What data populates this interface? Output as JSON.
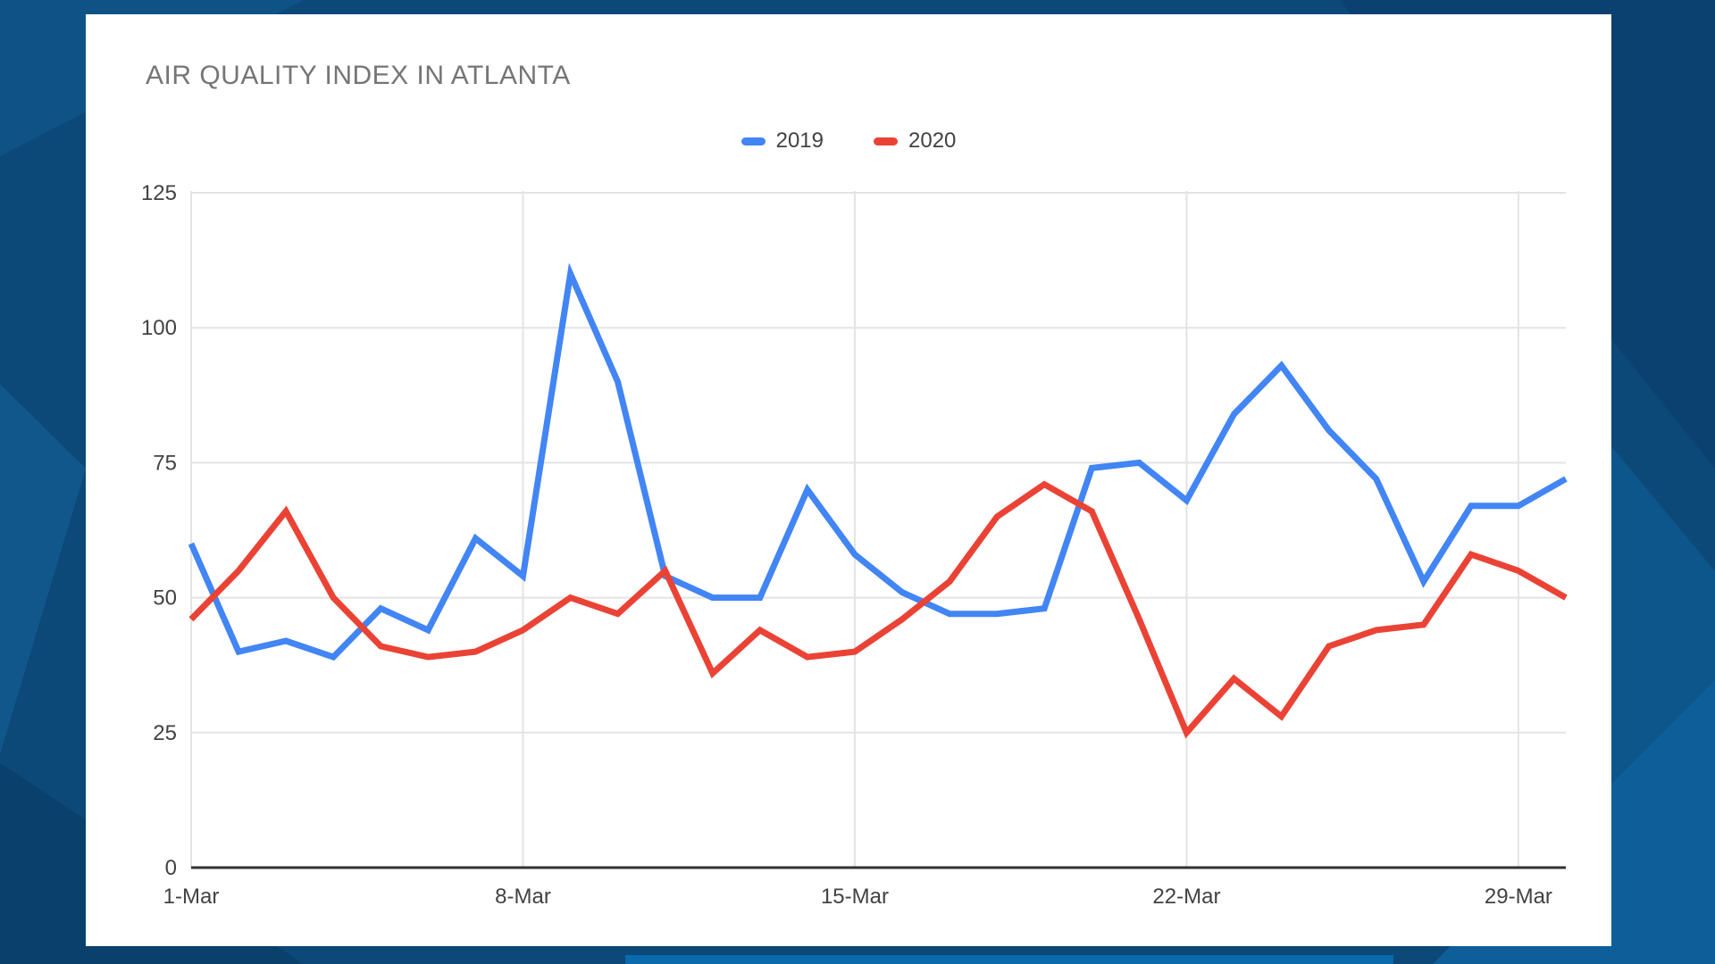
{
  "background": {
    "base_color": "#0C4878",
    "accent_colors": [
      "#0F5286",
      "#11578B",
      "#09406C",
      "#0A4170",
      "#0D568C",
      "#0E5E99",
      "#0A6AAB"
    ]
  },
  "chart": {
    "title": "AIR QUALITY INDEX IN ATLANTA",
    "title_color": "#757575",
    "legend": [
      {
        "label": "2019",
        "color": "#4285F4"
      },
      {
        "label": "2020",
        "color": "#EA4335"
      }
    ]
  },
  "chart_data": {
    "type": "line",
    "title": "AIR QUALITY INDEX IN ATLANTA",
    "categories": [
      "1-Mar",
      "2-Mar",
      "3-Mar",
      "4-Mar",
      "5-Mar",
      "6-Mar",
      "7-Mar",
      "8-Mar",
      "9-Mar",
      "10-Mar",
      "11-Mar",
      "12-Mar",
      "13-Mar",
      "14-Mar",
      "15-Mar",
      "16-Mar",
      "17-Mar",
      "18-Mar",
      "19-Mar",
      "20-Mar",
      "21-Mar",
      "22-Mar",
      "23-Mar",
      "24-Mar",
      "25-Mar",
      "26-Mar",
      "27-Mar",
      "28-Mar",
      "29-Mar",
      "30-Mar"
    ],
    "x_tick_labels": [
      "1-Mar",
      "8-Mar",
      "15-Mar",
      "22-Mar",
      "29-Mar"
    ],
    "x_tick_indices": [
      0,
      7,
      14,
      21,
      28
    ],
    "y_ticks": [
      0,
      25,
      50,
      75,
      100,
      125
    ],
    "ylim": [
      0,
      125
    ],
    "xlabel": "",
    "ylabel": "",
    "grid": true,
    "legend_position": "top-center",
    "series": [
      {
        "name": "2019",
        "color": "#4285F4",
        "values": [
          60,
          40,
          42,
          39,
          48,
          44,
          61,
          54,
          110,
          90,
          54,
          50,
          50,
          70,
          58,
          51,
          47,
          47,
          48,
          74,
          75,
          68,
          84,
          93,
          81,
          72,
          53,
          67,
          67,
          72
        ]
      },
      {
        "name": "2020",
        "color": "#EA4335",
        "values": [
          46,
          55,
          66,
          50,
          41,
          39,
          40,
          44,
          50,
          47,
          55,
          36,
          44,
          39,
          40,
          46,
          53,
          65,
          71,
          66,
          46,
          25,
          35,
          28,
          41,
          44,
          45,
          58,
          55,
          50
        ]
      }
    ],
    "axis_text_color": "#424242",
    "gridline_color": "#E3E3E3",
    "baseline_color": "#333333"
  }
}
